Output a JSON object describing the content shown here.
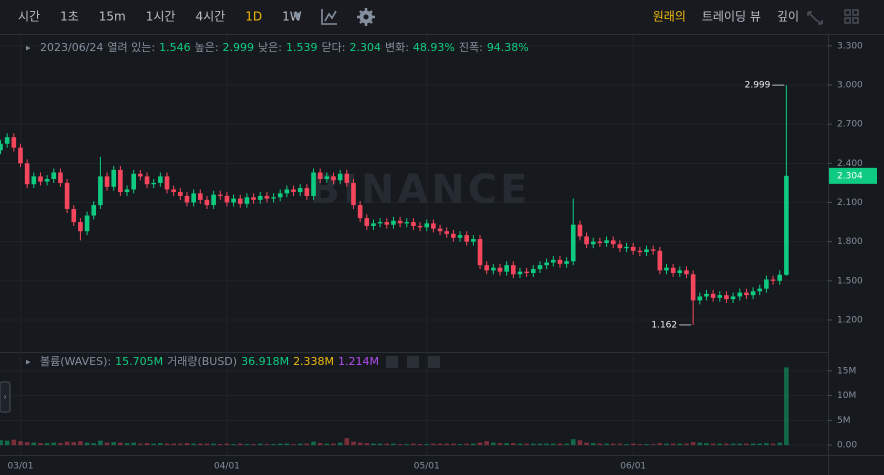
{
  "toolbar": {
    "intervals": [
      "시간",
      "1초",
      "15m",
      "1시간",
      "4시간",
      "1D",
      "1W"
    ],
    "active": "1D",
    "views": [
      "원래의",
      "트레이딩 뷰",
      "깊이"
    ],
    "active_view": "원래의"
  },
  "chart_data": {
    "type": "candlestick",
    "watermark": "BINANCE",
    "legend": {
      "date": "2023/06/24",
      "open_label": "열려 있는:",
      "high_label": "높은:",
      "low_label": "낮은:",
      "close_label": "닫다:",
      "change_label": "변화:",
      "change": "48.93%",
      "range_label": "진폭:",
      "range": "94.38%"
    },
    "up_color": "#0ecb81",
    "down_color": "#f6465d",
    "categories": [
      null,
      null,
      null,
      "03/01",
      null,
      null,
      null,
      null,
      null,
      null,
      null,
      null,
      null,
      null,
      null,
      null,
      null,
      null,
      null,
      null,
      null,
      null,
      null,
      null,
      null,
      null,
      null,
      null,
      null,
      null,
      null,
      null,
      null,
      null,
      "04/01",
      null,
      null,
      null,
      null,
      null,
      null,
      null,
      null,
      null,
      null,
      null,
      null,
      null,
      null,
      null,
      null,
      null,
      null,
      null,
      null,
      null,
      null,
      null,
      null,
      null,
      null,
      null,
      null,
      null,
      "05/01",
      null,
      null,
      null,
      null,
      null,
      null,
      null,
      null,
      null,
      null,
      null,
      null,
      null,
      null,
      null,
      null,
      null,
      null,
      null,
      null,
      null,
      null,
      null,
      null,
      null,
      null,
      null,
      null,
      null,
      null,
      "06/01",
      null,
      null,
      null,
      null,
      null,
      null,
      null,
      null,
      null,
      null,
      null,
      null,
      null,
      null,
      null,
      null,
      null,
      null,
      null,
      null,
      null,
      null,
      null
    ],
    "open": [
      2.5,
      2.55,
      2.6,
      2.52,
      2.4,
      2.24,
      2.3,
      2.26,
      2.28,
      2.33,
      2.25,
      2.05,
      1.95,
      1.88,
      2.0,
      2.08,
      2.3,
      2.22,
      2.35,
      2.18,
      2.2,
      2.32,
      2.3,
      2.24,
      2.25,
      2.3,
      2.2,
      2.18,
      2.15,
      2.1,
      2.17,
      2.12,
      2.08,
      2.16,
      2.15,
      2.1,
      2.13,
      2.09,
      2.14,
      2.12,
      2.15,
      2.13,
      2.14,
      2.17,
      2.2,
      2.18,
      2.21,
      2.15,
      2.33,
      2.28,
      2.3,
      2.27,
      2.32,
      2.25,
      2.08,
      1.98,
      1.92,
      1.94,
      1.95,
      1.93,
      1.96,
      1.94,
      1.95,
      1.92,
      1.91,
      1.94,
      1.9,
      1.88,
      1.86,
      1.83,
      1.85,
      1.8,
      1.82,
      1.62,
      1.58,
      1.6,
      1.57,
      1.62,
      1.55,
      1.57,
      1.56,
      1.59,
      1.62,
      1.64,
      1.66,
      1.63,
      1.65,
      1.93,
      1.84,
      1.78,
      1.8,
      1.79,
      1.81,
      1.78,
      1.75,
      1.76,
      1.73,
      1.72,
      1.74,
      1.73,
      1.58,
      1.6,
      1.56,
      1.58,
      1.55,
      1.35,
      1.38,
      1.4,
      1.37,
      1.39,
      1.36,
      1.38,
      1.41,
      1.39,
      1.42,
      1.44,
      1.51,
      1.5,
      1.546
    ],
    "high": [
      2.58,
      2.63,
      2.63,
      2.55,
      2.43,
      2.33,
      2.33,
      2.31,
      2.36,
      2.36,
      2.28,
      2.08,
      1.98,
      2.03,
      2.11,
      2.45,
      2.33,
      2.38,
      2.38,
      2.23,
      2.35,
      2.35,
      2.33,
      2.28,
      2.33,
      2.33,
      2.23,
      2.21,
      2.18,
      2.2,
      2.2,
      2.15,
      2.19,
      2.19,
      2.18,
      2.16,
      2.16,
      2.17,
      2.17,
      2.18,
      2.18,
      2.17,
      2.2,
      2.23,
      2.23,
      2.24,
      2.24,
      2.36,
      2.36,
      2.33,
      2.33,
      2.35,
      2.35,
      2.28,
      2.11,
      2.01,
      1.97,
      1.98,
      1.98,
      1.99,
      1.99,
      1.98,
      1.98,
      1.95,
      1.97,
      1.97,
      1.93,
      1.91,
      1.89,
      1.88,
      1.88,
      1.85,
      1.85,
      1.65,
      1.63,
      1.63,
      1.65,
      1.65,
      1.6,
      1.6,
      1.62,
      1.65,
      1.67,
      1.69,
      1.69,
      1.68,
      2.13,
      1.96,
      1.87,
      1.83,
      1.83,
      1.84,
      1.84,
      1.81,
      1.79,
      1.79,
      1.76,
      1.77,
      1.77,
      1.76,
      1.63,
      1.63,
      1.61,
      1.61,
      1.58,
      1.41,
      1.43,
      1.43,
      1.42,
      1.42,
      1.41,
      1.44,
      1.44,
      1.45,
      1.47,
      1.54,
      1.54,
      1.58,
      2.999
    ],
    "low": [
      2.47,
      2.52,
      2.49,
      2.37,
      2.21,
      2.21,
      2.23,
      2.23,
      2.25,
      2.22,
      2.02,
      1.92,
      1.81,
      1.85,
      1.97,
      2.05,
      2.19,
      2.19,
      2.15,
      2.15,
      2.17,
      2.27,
      2.21,
      2.21,
      2.22,
      2.17,
      2.15,
      2.12,
      2.07,
      2.07,
      2.09,
      2.05,
      2.05,
      2.12,
      2.07,
      2.07,
      2.06,
      2.06,
      2.09,
      2.09,
      2.1,
      2.1,
      2.11,
      2.14,
      2.15,
      2.15,
      2.12,
      2.12,
      2.25,
      2.25,
      2.24,
      2.24,
      2.22,
      2.05,
      1.95,
      1.89,
      1.89,
      1.91,
      1.9,
      1.9,
      1.91,
      1.91,
      1.89,
      1.88,
      1.88,
      1.87,
      1.85,
      1.83,
      1.8,
      1.8,
      1.77,
      1.77,
      1.59,
      1.55,
      1.55,
      1.54,
      1.54,
      1.52,
      1.52,
      1.53,
      1.53,
      1.56,
      1.59,
      1.61,
      1.6,
      1.6,
      1.62,
      1.81,
      1.75,
      1.75,
      1.76,
      1.76,
      1.75,
      1.72,
      1.72,
      1.7,
      1.69,
      1.69,
      1.7,
      1.55,
      1.55,
      1.53,
      1.53,
      1.52,
      1.162,
      1.32,
      1.35,
      1.34,
      1.34,
      1.33,
      1.33,
      1.35,
      1.36,
      1.36,
      1.39,
      1.41,
      1.47,
      1.47,
      1.539
    ],
    "close": [
      2.55,
      2.6,
      2.52,
      2.4,
      2.24,
      2.3,
      2.26,
      2.28,
      2.33,
      2.25,
      2.05,
      1.95,
      1.88,
      2.0,
      2.08,
      2.3,
      2.22,
      2.35,
      2.18,
      2.2,
      2.32,
      2.3,
      2.24,
      2.25,
      2.3,
      2.2,
      2.18,
      2.15,
      2.1,
      2.17,
      2.12,
      2.08,
      2.16,
      2.15,
      2.1,
      2.13,
      2.09,
      2.14,
      2.12,
      2.15,
      2.13,
      2.14,
      2.17,
      2.2,
      2.18,
      2.21,
      2.15,
      2.33,
      2.28,
      2.3,
      2.27,
      2.32,
      2.25,
      2.08,
      1.98,
      1.92,
      1.94,
      1.95,
      1.93,
      1.96,
      1.94,
      1.95,
      1.92,
      1.91,
      1.94,
      1.9,
      1.88,
      1.86,
      1.83,
      1.85,
      1.8,
      1.82,
      1.62,
      1.58,
      1.6,
      1.57,
      1.62,
      1.55,
      1.57,
      1.56,
      1.59,
      1.62,
      1.64,
      1.66,
      1.63,
      1.65,
      1.93,
      1.84,
      1.78,
      1.8,
      1.79,
      1.81,
      1.78,
      1.75,
      1.76,
      1.73,
      1.72,
      1.74,
      1.73,
      1.58,
      1.6,
      1.56,
      1.58,
      1.55,
      1.35,
      1.38,
      1.4,
      1.37,
      1.39,
      1.36,
      1.38,
      1.41,
      1.39,
      1.42,
      1.44,
      1.51,
      1.5,
      1.546,
      2.304
    ],
    "ylim": [
      0.97,
      3.36
    ],
    "yticks": [
      {
        "value": 3.3,
        "label": "3.300"
      },
      {
        "value": 3.0,
        "label": "3.000"
      },
      {
        "value": 2.7,
        "label": "2.700"
      },
      {
        "value": 2.4,
        "label": "2.400"
      },
      {
        "value": 2.1,
        "label": "2.100"
      },
      {
        "value": 1.8,
        "label": "1.800"
      },
      {
        "value": 1.5,
        "label": "1.500"
      },
      {
        "value": 1.2,
        "label": "1.200"
      }
    ],
    "volume_legend": {
      "name": "볼륨(WAVES):",
      "value": "15.705M",
      "quote_name": "거래량(BUSD)",
      "quote_value": "36.918M",
      "ma1": "2.338M",
      "ma2": "1.214M"
    },
    "volume": [
      1.0,
      0.9,
      1.1,
      0.8,
      0.6,
      0.5,
      0.4,
      0.4,
      0.5,
      0.4,
      0.7,
      0.6,
      0.8,
      0.5,
      0.4,
      0.9,
      0.5,
      0.6,
      0.5,
      0.4,
      0.5,
      0.3,
      0.4,
      0.3,
      0.4,
      0.3,
      0.3,
      0.3,
      0.4,
      0.3,
      0.3,
      0.3,
      0.3,
      0.2,
      0.3,
      0.2,
      0.3,
      0.2,
      0.2,
      0.3,
      0.2,
      0.2,
      0.3,
      0.3,
      0.2,
      0.3,
      0.3,
      0.7,
      0.4,
      0.3,
      0.3,
      0.5,
      1.4,
      0.7,
      0.5,
      0.4,
      0.3,
      0.3,
      0.3,
      0.3,
      0.2,
      0.2,
      0.3,
      0.2,
      0.2,
      0.3,
      0.3,
      0.3,
      0.3,
      0.2,
      0.3,
      0.3,
      0.5,
      0.8,
      0.5,
      0.4,
      0.4,
      0.4,
      0.3,
      0.3,
      0.3,
      0.3,
      0.3,
      0.3,
      0.3,
      0.3,
      1.2,
      1.0,
      0.5,
      0.4,
      0.3,
      0.3,
      0.3,
      0.3,
      0.2,
      0.3,
      0.2,
      0.2,
      0.2,
      0.4,
      0.3,
      0.3,
      0.3,
      0.3,
      0.6,
      0.5,
      0.4,
      0.3,
      0.3,
      0.3,
      0.3,
      0.3,
      0.3,
      0.3,
      0.3,
      0.4,
      0.3,
      0.5,
      15.705
    ],
    "vlim": [
      -2,
      18.2
    ],
    "vticks": [
      {
        "value": 15,
        "label": "15M"
      },
      {
        "value": 10,
        "label": "10M"
      },
      {
        "value": 5,
        "label": "5M"
      },
      {
        "value": 0,
        "label": "0.00"
      }
    ],
    "grid": true
  }
}
